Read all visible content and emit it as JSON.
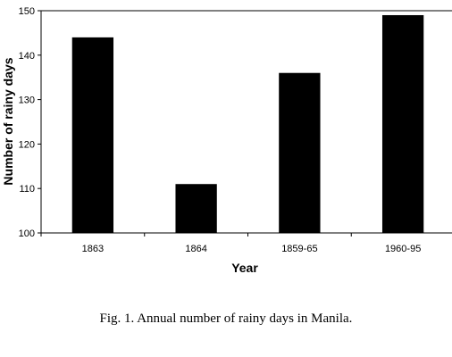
{
  "chart_data": {
    "type": "bar",
    "categories": [
      "1863",
      "1864",
      "1859-65",
      "1960-95"
    ],
    "values": [
      144,
      111,
      136,
      149
    ],
    "xlabel": "Year",
    "ylabel": "Number of rainy days",
    "ylim": [
      100,
      150
    ],
    "yticks": [
      "100",
      "110",
      "120",
      "130",
      "140",
      "150"
    ],
    "bar_color": "#000000",
    "grid": false,
    "legend": false
  },
  "caption": "Fig. 1. Annual number  of rainy days in Manila."
}
